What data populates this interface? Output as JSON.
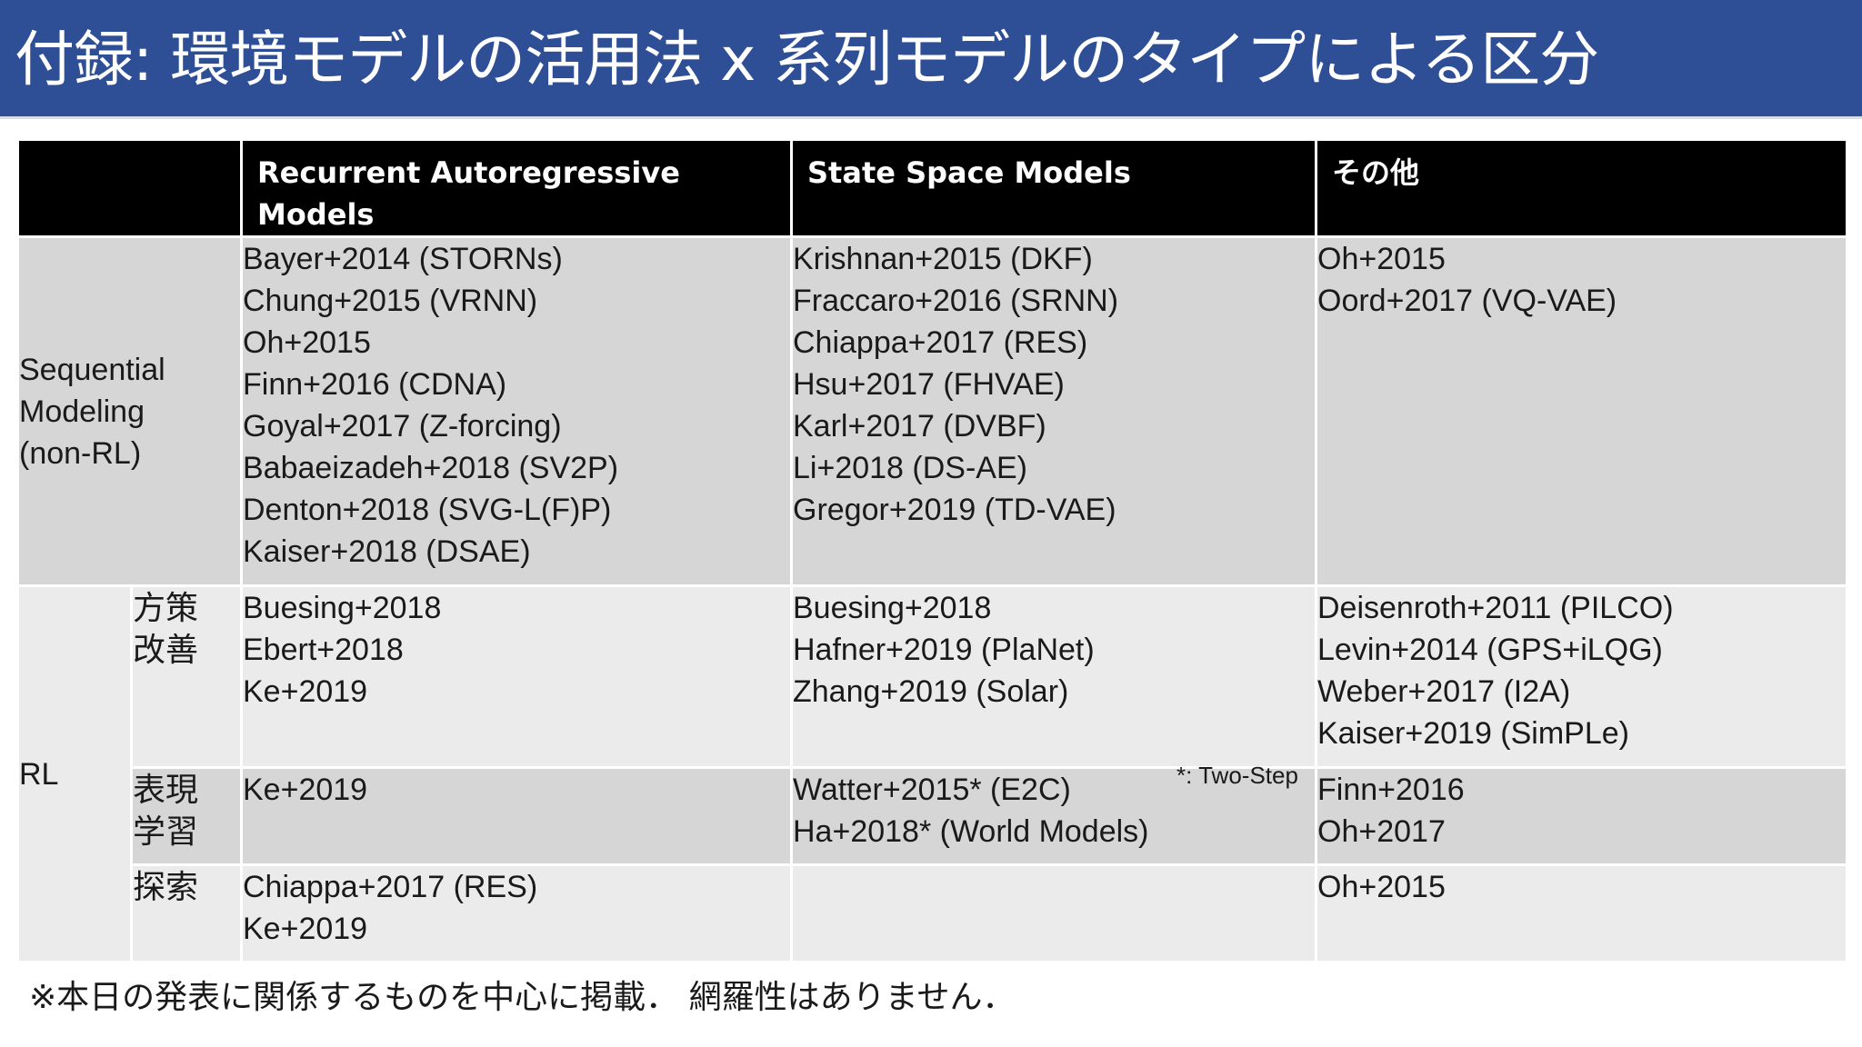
{
  "title": "付録: 環境モデルの活用法 x 系列モデルのタイプによる区分",
  "table": {
    "headers": [
      "",
      "Recurrent Autoregressive Models",
      "State Space Models",
      "その他"
    ],
    "sequential": {
      "label_lines": [
        "Sequential",
        "Modeling",
        "(non-RL)"
      ],
      "rar": [
        "Bayer+2014 (STORNs)",
        "Chung+2015 (VRNN)",
        "Oh+2015",
        "Finn+2016 (CDNA)",
        "Goyal+2017 (Z-forcing)",
        "Babaeizadeh+2018 (SV2P)",
        "Denton+2018 (SVG-L(F)P)",
        "Kaiser+2018 (DSAE)"
      ],
      "ssm": [
        "Krishnan+2015 (DKF)",
        "Fraccaro+2016 (SRNN)",
        "Chiappa+2017 (RES)",
        "Hsu+2017 (FHVAE)",
        "Karl+2017 (DVBF)",
        "Li+2018 (DS-AE)",
        "Gregor+2019 (TD-VAE)"
      ],
      "other": [
        "Oh+2015",
        "Oord+2017 (VQ-VAE)"
      ]
    },
    "rl": {
      "label": "RL",
      "policy": {
        "label_lines": [
          "方策",
          "改善"
        ],
        "rar": [
          "Buesing+2018",
          "Ebert+2018",
          "Ke+2019"
        ],
        "ssm": [
          "Buesing+2018",
          "Hafner+2019 (PlaNet)",
          "Zhang+2019 (Solar)"
        ],
        "other": [
          "Deisenroth+2011 (PILCO)",
          "Levin+2014 (GPS+iLQG)",
          "Weber+2017 (I2A)",
          "Kaiser+2019 (SimPLe)"
        ]
      },
      "representation": {
        "label_lines": [
          "表現",
          "学習"
        ],
        "rar": [
          "Ke+2019"
        ],
        "ssm": [
          "Watter+2015* (E2C)",
          "Ha+2018* (World Models)"
        ],
        "ssm_note": "*: Two-Step",
        "other": [
          "Finn+2016",
          "Oh+2017"
        ]
      },
      "exploration": {
        "label_lines": [
          "探索"
        ],
        "rar": [
          "Chiappa+2017 (RES)",
          "Ke+2019"
        ],
        "ssm": [],
        "other": [
          "Oh+2015"
        ]
      }
    }
  },
  "footnote": "※本日の発表に関係するものを中心に掲載． 網羅性はありません．",
  "colors": {
    "title_bar": "#2e4f96",
    "header_bg": "#000000",
    "cell_dark": "#d6d6d6",
    "cell_light": "#ebebeb"
  }
}
